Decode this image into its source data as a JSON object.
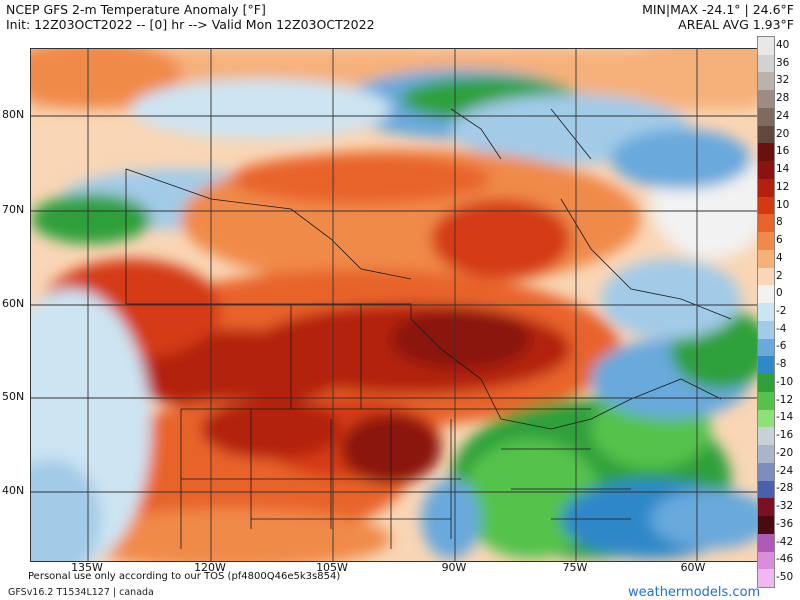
{
  "header": {
    "title": "NCEP GFS 2-m Temperature Anomaly [°F]",
    "init": "Init: 12Z03OCT2022 -- [0] hr --> Valid Mon 12Z03OCT2022",
    "minmax": "MIN|MAX -24.1° | 24.6°F",
    "areal": "AREAL AVG 1.93°F"
  },
  "map": {
    "lat_labels": [
      "80N",
      "70N",
      "60N",
      "50N",
      "40N"
    ],
    "lon_labels": [
      "135W",
      "120W",
      "105W",
      "90W",
      "75W",
      "60W"
    ]
  },
  "colorbar": {
    "labels": [
      "40",
      "36",
      "32",
      "28",
      "24",
      "20",
      "16",
      "14",
      "12",
      "10",
      "8",
      "6",
      "4",
      "2",
      "0",
      "-2",
      "-4",
      "-6",
      "-8",
      "-10",
      "-12",
      "-14",
      "-16",
      "-20",
      "-24",
      "-28",
      "-32",
      "-36",
      "-42",
      "-46",
      "-50"
    ],
    "colors": [
      "#e8e8e8",
      "#d2d2d2",
      "#b9b2ad",
      "#9c8c83",
      "#7e6a5e",
      "#604a40",
      "#6b0f0f",
      "#8a1210",
      "#b3200e",
      "#d43a12",
      "#e8632a",
      "#f08a4a",
      "#f6b07a",
      "#f9d6b5",
      "#f2f2f2",
      "#cde4f2",
      "#a2cbe8",
      "#69a9dc",
      "#2f88c8",
      "#2fa03a",
      "#55c24c",
      "#8ee07a",
      "#c8d0d8",
      "#a9b5ca",
      "#7d8dbd",
      "#4a60ad",
      "#7a1020",
      "#4a0a12",
      "#b05ab8",
      "#d88ed8",
      "#f0b8f0"
    ]
  },
  "footer": {
    "disclaimer": "Personal use only according to our TOS (pf4800Q46e5k3s854)",
    "version": "GFSv16.2 T1534L127 | canada",
    "brand": "weathermodels.com"
  }
}
